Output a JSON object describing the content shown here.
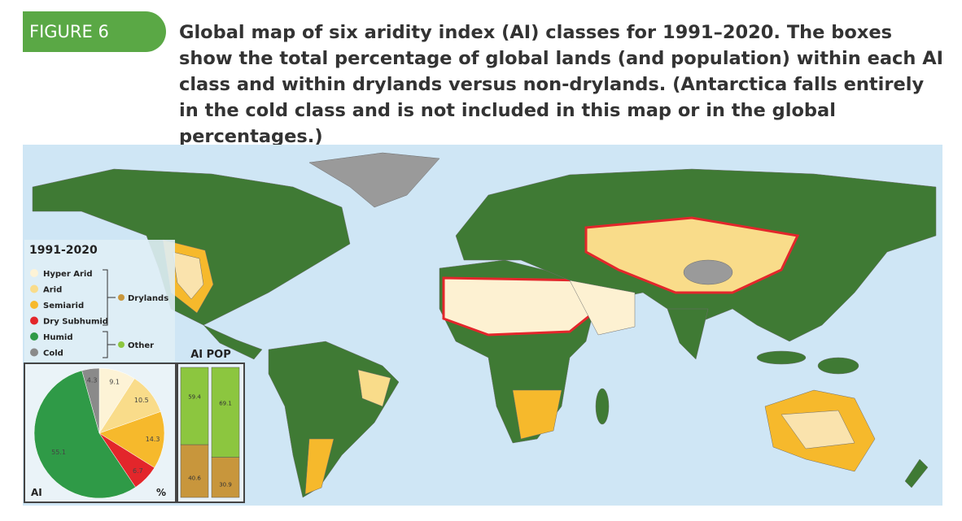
{
  "header": {
    "tag": "FIGURE 6",
    "caption": "Global map of six aridity index (AI) classes for 1991–2020. The boxes show the total percentage of global lands (and population) within each AI class and within drylands versus non-drylands. (Antarctica falls entirely in the cold class and is not included in this map or in the global percentages.)"
  },
  "legend": {
    "title": "1991-2020"
  },
  "chart_data": [
    {
      "type": "pie",
      "label": "AI",
      "unit_label": "%",
      "categories": [
        "Hyper Arid",
        "Arid",
        "Semiarid",
        "Dry Subhumid",
        "Humid",
        "Cold"
      ],
      "values": [
        9.1,
        10.5,
        14.3,
        6.7,
        55.1,
        4.3
      ],
      "colors": [
        "#fdf3d6",
        "#f9dc8a",
        "#f6b92c",
        "#e3262b",
        "#2f9a47",
        "#8a8a8a"
      ]
    },
    {
      "type": "stacked-bar",
      "title": "AI POP",
      "categories": [
        "AI",
        "POP"
      ],
      "ylim": [
        0,
        100
      ],
      "series": [
        {
          "name": "Drylands",
          "color": "#c8963c",
          "values": [
            40.6,
            30.9
          ]
        },
        {
          "name": "Other",
          "color": "#8cc63f",
          "values": [
            59.4,
            69.1
          ]
        }
      ]
    }
  ]
}
